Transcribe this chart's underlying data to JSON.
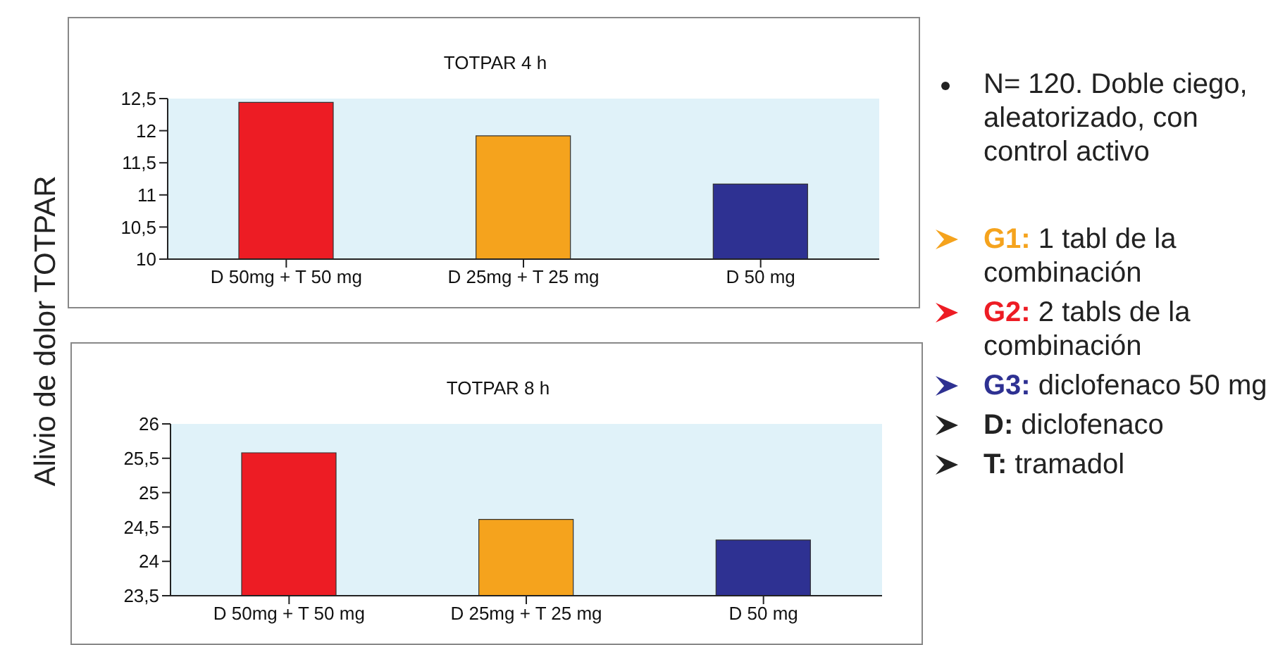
{
  "chart_data": [
    {
      "type": "bar",
      "title": "TOTPAR 4 h",
      "ylabel": "Alivio de dolor TOTPAR",
      "categories": [
        "D 50mg + T 50 mg",
        "D 25mg + T 25 mg",
        "D 50 mg"
      ],
      "values": [
        12.44,
        11.92,
        11.17
      ],
      "colors": [
        "#ed1c24",
        "#f5a31d",
        "#2e3192"
      ],
      "ylim": [
        10,
        12.5
      ],
      "yticks": [
        10,
        {
          "value": 10.5,
          "label": "10,5"
        },
        11,
        {
          "value": 11.5,
          "label": "11,5"
        },
        12,
        {
          "value": 12.5,
          "label": "12,5"
        }
      ],
      "grid": false,
      "legend": false
    },
    {
      "type": "bar",
      "title": "TOTPAR 8 h",
      "categories": [
        "D 50mg + T 50 mg",
        "D 25mg + T 25 mg",
        "D 50 mg"
      ],
      "values": [
        25.58,
        24.61,
        24.31
      ],
      "colors": [
        "#ed1c24",
        "#f5a31d",
        "#2e3192"
      ],
      "ylim": [
        23.5,
        26
      ],
      "yticks": [
        {
          "value": 23.5,
          "label": "23,5"
        },
        24,
        {
          "value": 24.5,
          "label": "24,5"
        },
        25,
        {
          "value": 25.5,
          "label": "25,5"
        },
        26
      ],
      "grid": false,
      "legend": false
    },
    {
      "type": "other",
      "annotations": [
        "N= 120. Doble ciego, aleatorizado, con control activo",
        "G1: 1 tabl de la combinación",
        "G2: 2 tabls de la combinación",
        "G3: diclofenaco 50 mg",
        "D: diclofenaco",
        "T: tramadol"
      ],
      "colors": [
        "#222222",
        "#f5a31d",
        "#ed1c24",
        "#2e3192",
        "#222222",
        "#222222"
      ]
    }
  ]
}
